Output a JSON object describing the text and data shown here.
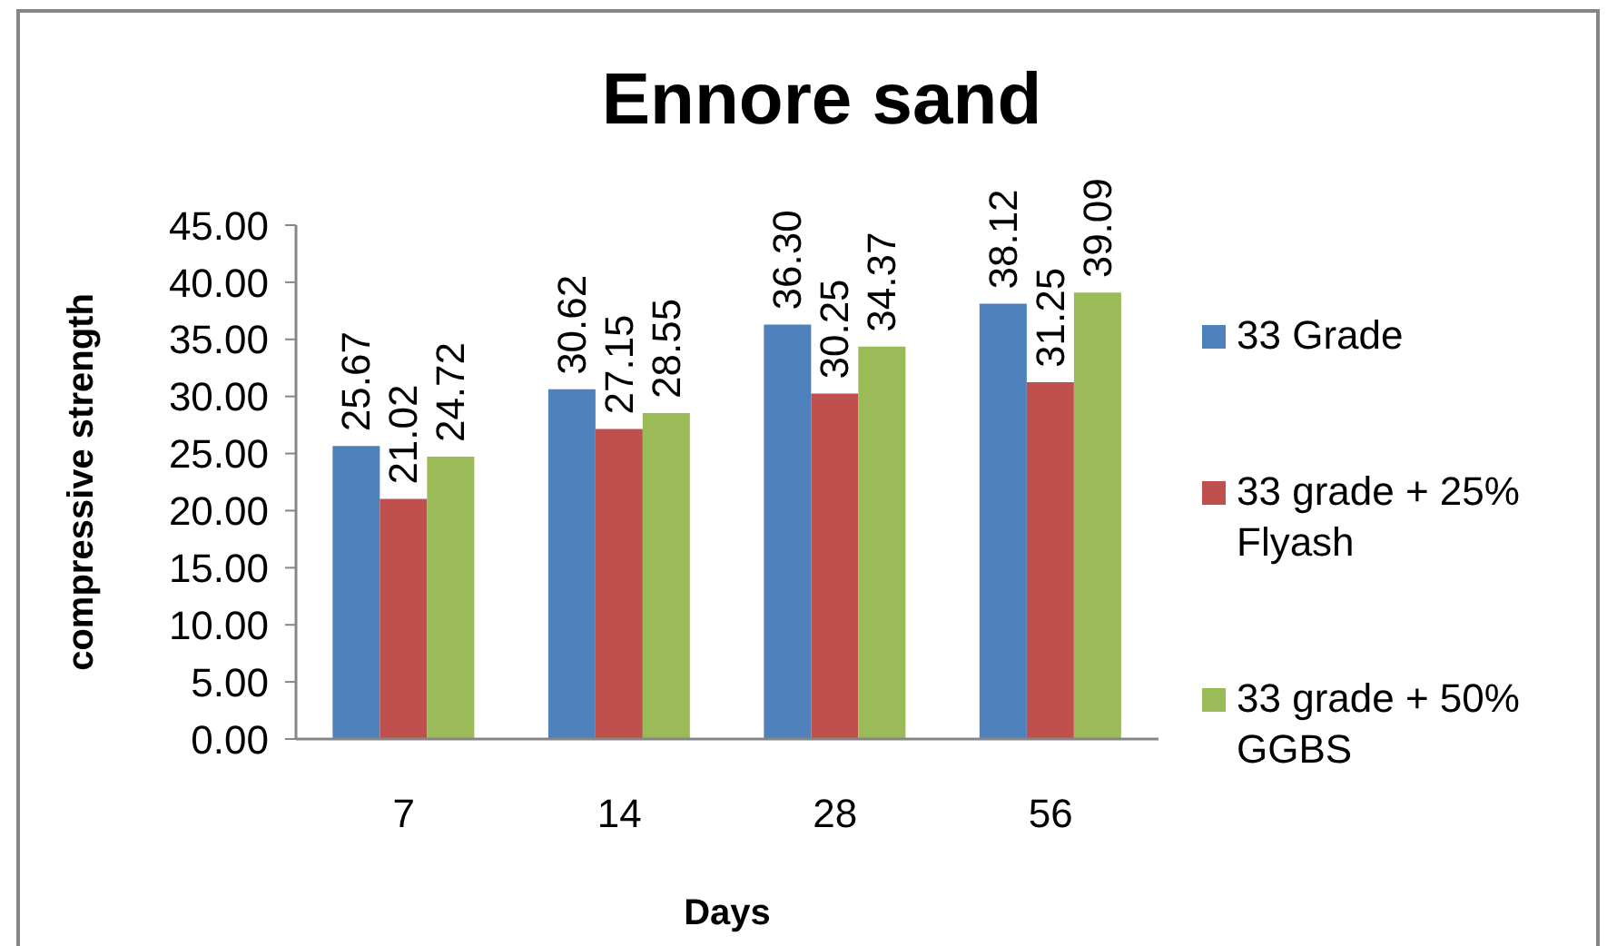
{
  "chart_data": {
    "type": "bar",
    "title": "Ennore sand",
    "xlabel": "Days",
    "ylabel": "compressive strength",
    "categories": [
      "7",
      "14",
      "28",
      "56"
    ],
    "series": [
      {
        "name": "33 Grade",
        "color": "#4f81bd",
        "values": [
          25.67,
          30.62,
          36.3,
          38.12
        ],
        "value_labels": [
          "25.67",
          "30.62",
          "36.30",
          "38.12"
        ]
      },
      {
        "name": "33 grade + 25% Flyash",
        "color": "#c0504d",
        "values": [
          21.02,
          27.15,
          30.25,
          31.25
        ],
        "value_labels": [
          "21.02",
          "27.15",
          "30.25",
          "31.25"
        ]
      },
      {
        "name": "33 grade + 50% GGBS",
        "color": "#9bbb59",
        "values": [
          24.72,
          28.55,
          34.37,
          39.09
        ],
        "value_labels": [
          "24.72",
          "28.55",
          "34.37",
          "39.09"
        ]
      }
    ],
    "ylim": [
      0,
      45
    ],
    "yticks": [
      {
        "value": 0,
        "label": "0.00"
      },
      {
        "value": 5,
        "label": "5.00"
      },
      {
        "value": 10,
        "label": "10.00"
      },
      {
        "value": 15,
        "label": "15.00"
      },
      {
        "value": 20,
        "label": "20.00"
      },
      {
        "value": 25,
        "label": "25.00"
      },
      {
        "value": 30,
        "label": "30.00"
      },
      {
        "value": 35,
        "label": "35.00"
      },
      {
        "value": 40,
        "label": "40.00"
      },
      {
        "value": 45,
        "label": "45.00"
      }
    ],
    "grid": false,
    "legend": "right"
  }
}
